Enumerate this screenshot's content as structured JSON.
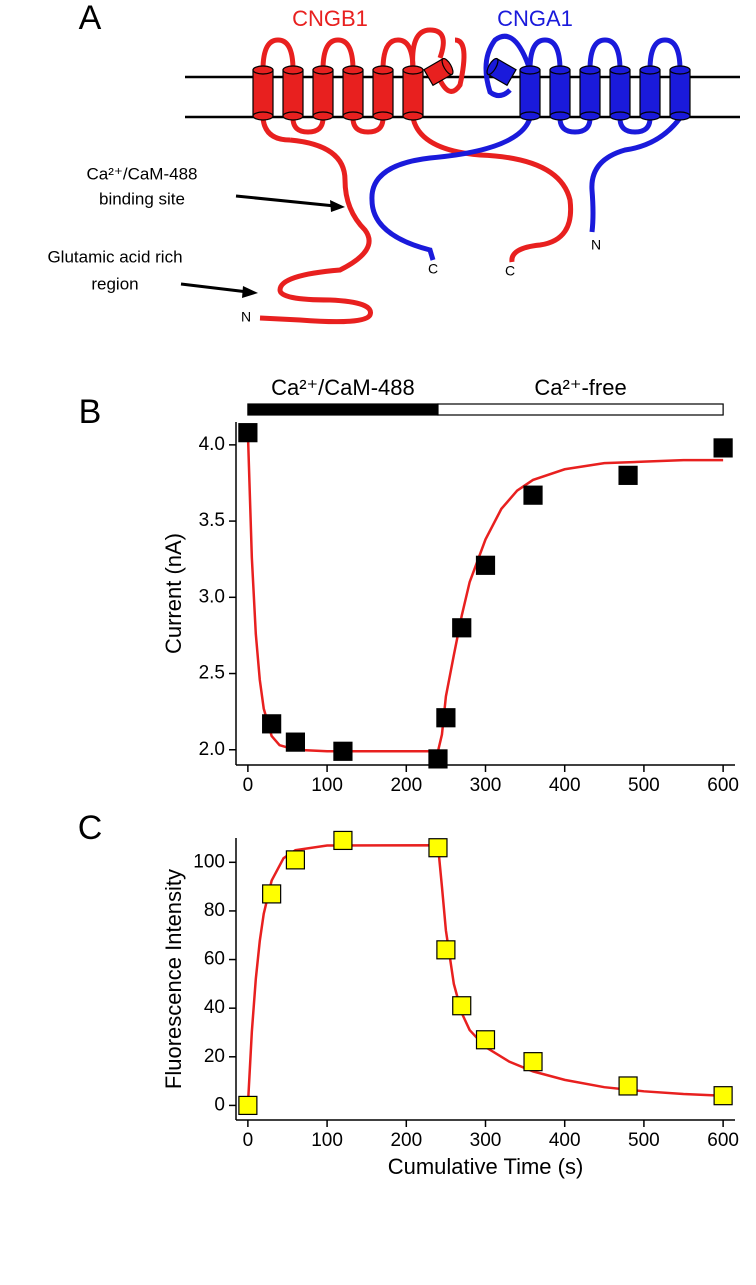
{
  "diagram": {
    "panel": "A",
    "channel_b": "CNGB1",
    "channel_a": "CNGA1",
    "binding_label": [
      "Ca²⁺/CaM-488",
      "binding site"
    ],
    "glu_label": [
      "Glutamic acid rich",
      "region"
    ],
    "termini": [
      "N",
      "C",
      "C",
      "N"
    ]
  },
  "chart_data": [
    {
      "type": "scatter",
      "panel": "B",
      "ylabel": "Current (nA)",
      "xlim": [
        -15,
        615
      ],
      "ylim": [
        1.9,
        4.15
      ],
      "xticks": [
        0,
        100,
        200,
        300,
        400,
        500,
        600
      ],
      "yticks": [
        {
          "value": 2,
          "label": "2.0"
        },
        {
          "value": 2.5,
          "label": "2.5"
        },
        {
          "value": 3,
          "label": "3.0"
        },
        {
          "value": 3.5,
          "label": "3.5"
        },
        {
          "value": 4,
          "label": "4.0"
        }
      ],
      "bars": [
        {
          "label": "Ca²⁺/CaM-488",
          "start": 0,
          "end": 240,
          "color": "#000000"
        },
        {
          "label": "Ca²⁺-free",
          "start": 240,
          "end": 600,
          "color": "#ffffff"
        }
      ],
      "series": [
        {
          "style": "markers",
          "color": "#000000",
          "x": [
            0,
            30,
            60,
            120,
            240,
            250,
            270,
            300,
            360,
            480,
            600
          ],
          "values": [
            4.08,
            2.17,
            2.05,
            1.99,
            1.94,
            2.21,
            2.8,
            3.21,
            3.67,
            3.8,
            3.98
          ]
        },
        {
          "style": "line",
          "color": "#e8201f",
          "x": [
            0,
            5,
            10,
            15,
            20,
            30,
            40,
            60,
            100,
            150,
            200,
            240,
            245,
            250,
            260,
            270,
            280,
            300,
            320,
            340,
            360,
            400,
            450,
            500,
            550,
            600
          ],
          "values": [
            4.08,
            3.26,
            2.76,
            2.46,
            2.27,
            2.09,
            2.03,
            2.0,
            1.99,
            1.99,
            1.99,
            1.99,
            2.1,
            2.35,
            2.62,
            2.88,
            3.1,
            3.38,
            3.58,
            3.7,
            3.77,
            3.84,
            3.88,
            3.89,
            3.9,
            3.9
          ]
        }
      ]
    },
    {
      "type": "scatter",
      "panel": "C",
      "ylabel": "Fluorescence Intensity",
      "xlabel": "Cumulative Time (s)",
      "xlim": [
        -15,
        615
      ],
      "ylim": [
        -6,
        110
      ],
      "xticks": [
        0,
        100,
        200,
        300,
        400,
        500,
        600
      ],
      "yticks": [
        0,
        20,
        40,
        60,
        80,
        100
      ],
      "series": [
        {
          "style": "markers",
          "color": "#ffff00",
          "x": [
            0,
            30,
            60,
            120,
            240,
            250,
            270,
            300,
            360,
            480,
            600
          ],
          "values": [
            0,
            87,
            101,
            109,
            106,
            64,
            41,
            27,
            18,
            8,
            4
          ]
        },
        {
          "style": "line",
          "color": "#e8201f",
          "x": [
            0,
            5,
            10,
            15,
            20,
            30,
            45,
            60,
            100,
            240,
            245,
            250,
            260,
            270,
            280,
            300,
            330,
            360,
            400,
            450,
            500,
            550,
            600
          ],
          "values": [
            0,
            30.3,
            52,
            67.6,
            78.8,
            92.5,
            101.7,
            105,
            106.9,
            107,
            90,
            72,
            50,
            38,
            31,
            24,
            18,
            14,
            10.5,
            7.5,
            5.8,
            4.7,
            4.0
          ]
        }
      ]
    }
  ]
}
